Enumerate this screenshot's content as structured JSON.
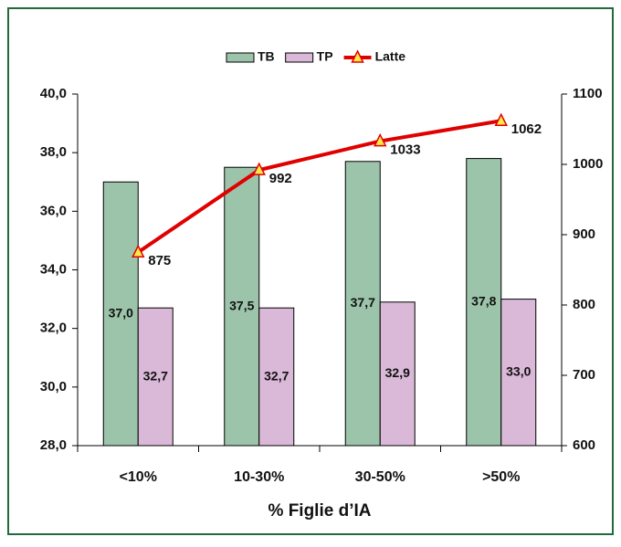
{
  "chart_data": {
    "type": "bar",
    "categories": [
      "<10%",
      "10-30%",
      "30-50%",
      ">50%"
    ],
    "x_label": "% Figlie d’IA",
    "series": [
      {
        "name": "TB",
        "type": "bar",
        "color": "#9cc4aa",
        "values": [
          37.0,
          37.5,
          37.7,
          37.8
        ],
        "value_labels": [
          "37,0",
          "37,5",
          "37,7",
          "37,8"
        ]
      },
      {
        "name": "TP",
        "type": "bar",
        "color": "#dab9d8",
        "values": [
          32.7,
          32.7,
          32.9,
          33.0
        ],
        "value_labels": [
          "32,7",
          "32,7",
          "32,9",
          "33,0"
        ]
      },
      {
        "name": "Latte",
        "type": "line",
        "axis": "y2",
        "color": "#e00000",
        "marker_color": "#ffe84a",
        "values": [
          875,
          992,
          1033,
          1062
        ]
      }
    ],
    "ylim": [
      28,
      40
    ],
    "yticks": [
      {
        "value": 28,
        "label": "28,0"
      },
      {
        "value": 30,
        "label": "30,0"
      },
      {
        "value": 32,
        "label": "32,0"
      },
      {
        "value": 34,
        "label": "34,0"
      },
      {
        "value": 36,
        "label": "36,0"
      },
      {
        "value": 38,
        "label": "38,0"
      },
      {
        "value": 40,
        "label": "40,0"
      }
    ],
    "y2lim": [
      600,
      1100
    ],
    "y2ticks": [
      600,
      700,
      800,
      900,
      1000,
      1100
    ],
    "legend": "top"
  }
}
